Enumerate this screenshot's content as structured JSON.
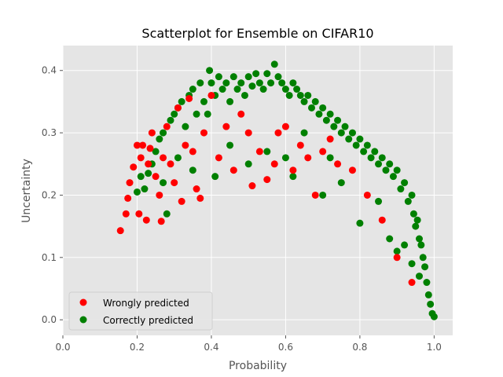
{
  "chart_data": {
    "type": "scatter",
    "title": "Scatterplot for Ensemble on CIFAR10",
    "xlabel": "Probability",
    "ylabel": "Uncertainty",
    "xlim": [
      0.0,
      1.05
    ],
    "ylim": [
      -0.025,
      0.44
    ],
    "xticks": [
      0.0,
      0.2,
      0.4,
      0.6,
      0.8,
      1.0
    ],
    "xtick_labels": [
      "0.0",
      "0.2",
      "0.4",
      "0.6",
      "0.8",
      "1.0"
    ],
    "yticks": [
      0.0,
      0.1,
      0.2,
      0.3,
      0.4
    ],
    "ytick_labels": [
      "0.0",
      "0.1",
      "0.2",
      "0.3",
      "0.4"
    ],
    "grid": true,
    "legend_position": "lower-left",
    "series": [
      {
        "name": "Wrongly predicted",
        "color": "#ff0000",
        "points": [
          [
            0.155,
            0.143
          ],
          [
            0.17,
            0.17
          ],
          [
            0.175,
            0.195
          ],
          [
            0.18,
            0.22
          ],
          [
            0.19,
            0.245
          ],
          [
            0.2,
            0.28
          ],
          [
            0.205,
            0.17
          ],
          [
            0.21,
            0.26
          ],
          [
            0.215,
            0.28
          ],
          [
            0.225,
            0.16
          ],
          [
            0.23,
            0.25
          ],
          [
            0.235,
            0.275
          ],
          [
            0.24,
            0.3
          ],
          [
            0.25,
            0.23
          ],
          [
            0.26,
            0.2
          ],
          [
            0.265,
            0.158
          ],
          [
            0.27,
            0.26
          ],
          [
            0.28,
            0.31
          ],
          [
            0.29,
            0.25
          ],
          [
            0.3,
            0.22
          ],
          [
            0.31,
            0.34
          ],
          [
            0.32,
            0.19
          ],
          [
            0.33,
            0.28
          ],
          [
            0.34,
            0.355
          ],
          [
            0.35,
            0.27
          ],
          [
            0.36,
            0.21
          ],
          [
            0.37,
            0.195
          ],
          [
            0.38,
            0.3
          ],
          [
            0.4,
            0.36
          ],
          [
            0.42,
            0.26
          ],
          [
            0.44,
            0.31
          ],
          [
            0.46,
            0.24
          ],
          [
            0.48,
            0.33
          ],
          [
            0.5,
            0.3
          ],
          [
            0.51,
            0.215
          ],
          [
            0.53,
            0.27
          ],
          [
            0.55,
            0.225
          ],
          [
            0.57,
            0.25
          ],
          [
            0.58,
            0.3
          ],
          [
            0.6,
            0.31
          ],
          [
            0.62,
            0.24
          ],
          [
            0.64,
            0.28
          ],
          [
            0.66,
            0.26
          ],
          [
            0.68,
            0.2
          ],
          [
            0.7,
            0.27
          ],
          [
            0.72,
            0.29
          ],
          [
            0.74,
            0.25
          ],
          [
            0.78,
            0.24
          ],
          [
            0.82,
            0.2
          ],
          [
            0.86,
            0.16
          ],
          [
            0.9,
            0.1
          ],
          [
            0.94,
            0.06
          ]
        ]
      },
      {
        "name": "Correctly predicted",
        "color": "#008000",
        "points": [
          [
            0.2,
            0.205
          ],
          [
            0.21,
            0.23
          ],
          [
            0.22,
            0.21
          ],
          [
            0.23,
            0.235
          ],
          [
            0.24,
            0.25
          ],
          [
            0.25,
            0.27
          ],
          [
            0.26,
            0.29
          ],
          [
            0.27,
            0.3
          ],
          [
            0.28,
            0.17
          ],
          [
            0.29,
            0.32
          ],
          [
            0.3,
            0.33
          ],
          [
            0.31,
            0.34
          ],
          [
            0.32,
            0.35
          ],
          [
            0.33,
            0.31
          ],
          [
            0.34,
            0.36
          ],
          [
            0.35,
            0.37
          ],
          [
            0.36,
            0.33
          ],
          [
            0.37,
            0.38
          ],
          [
            0.38,
            0.35
          ],
          [
            0.39,
            0.33
          ],
          [
            0.395,
            0.4
          ],
          [
            0.4,
            0.38
          ],
          [
            0.41,
            0.36
          ],
          [
            0.42,
            0.39
          ],
          [
            0.43,
            0.37
          ],
          [
            0.44,
            0.38
          ],
          [
            0.45,
            0.35
          ],
          [
            0.46,
            0.39
          ],
          [
            0.47,
            0.37
          ],
          [
            0.48,
            0.38
          ],
          [
            0.49,
            0.36
          ],
          [
            0.5,
            0.39
          ],
          [
            0.51,
            0.375
          ],
          [
            0.52,
            0.395
          ],
          [
            0.53,
            0.38
          ],
          [
            0.54,
            0.37
          ],
          [
            0.55,
            0.395
          ],
          [
            0.56,
            0.38
          ],
          [
            0.57,
            0.41
          ],
          [
            0.58,
            0.39
          ],
          [
            0.59,
            0.38
          ],
          [
            0.6,
            0.37
          ],
          [
            0.61,
            0.36
          ],
          [
            0.62,
            0.38
          ],
          [
            0.63,
            0.37
          ],
          [
            0.64,
            0.36
          ],
          [
            0.65,
            0.35
          ],
          [
            0.66,
            0.36
          ],
          [
            0.67,
            0.34
          ],
          [
            0.68,
            0.35
          ],
          [
            0.69,
            0.33
          ],
          [
            0.7,
            0.34
          ],
          [
            0.71,
            0.32
          ],
          [
            0.72,
            0.33
          ],
          [
            0.73,
            0.31
          ],
          [
            0.74,
            0.32
          ],
          [
            0.75,
            0.3
          ],
          [
            0.76,
            0.31
          ],
          [
            0.77,
            0.29
          ],
          [
            0.78,
            0.3
          ],
          [
            0.79,
            0.28
          ],
          [
            0.8,
            0.29
          ],
          [
            0.81,
            0.27
          ],
          [
            0.82,
            0.28
          ],
          [
            0.83,
            0.26
          ],
          [
            0.84,
            0.27
          ],
          [
            0.85,
            0.25
          ],
          [
            0.86,
            0.26
          ],
          [
            0.87,
            0.24
          ],
          [
            0.88,
            0.25
          ],
          [
            0.89,
            0.23
          ],
          [
            0.9,
            0.24
          ],
          [
            0.91,
            0.21
          ],
          [
            0.92,
            0.22
          ],
          [
            0.93,
            0.19
          ],
          [
            0.94,
            0.2
          ],
          [
            0.945,
            0.17
          ],
          [
            0.95,
            0.15
          ],
          [
            0.955,
            0.16
          ],
          [
            0.96,
            0.13
          ],
          [
            0.965,
            0.12
          ],
          [
            0.97,
            0.1
          ],
          [
            0.975,
            0.085
          ],
          [
            0.98,
            0.06
          ],
          [
            0.985,
            0.04
          ],
          [
            0.99,
            0.025
          ],
          [
            0.995,
            0.01
          ],
          [
            1.0,
            0.005
          ],
          [
            0.7,
            0.2
          ],
          [
            0.75,
            0.22
          ],
          [
            0.8,
            0.155
          ],
          [
            0.85,
            0.19
          ],
          [
            0.88,
            0.13
          ],
          [
            0.9,
            0.11
          ],
          [
            0.92,
            0.12
          ],
          [
            0.94,
            0.09
          ],
          [
            0.96,
            0.07
          ],
          [
            0.41,
            0.23
          ],
          [
            0.5,
            0.25
          ],
          [
            0.6,
            0.26
          ],
          [
            0.35,
            0.24
          ],
          [
            0.45,
            0.28
          ],
          [
            0.55,
            0.27
          ],
          [
            0.65,
            0.3
          ],
          [
            0.31,
            0.26
          ],
          [
            0.27,
            0.22
          ],
          [
            0.62,
            0.23
          ],
          [
            0.72,
            0.26
          ]
        ]
      }
    ]
  }
}
